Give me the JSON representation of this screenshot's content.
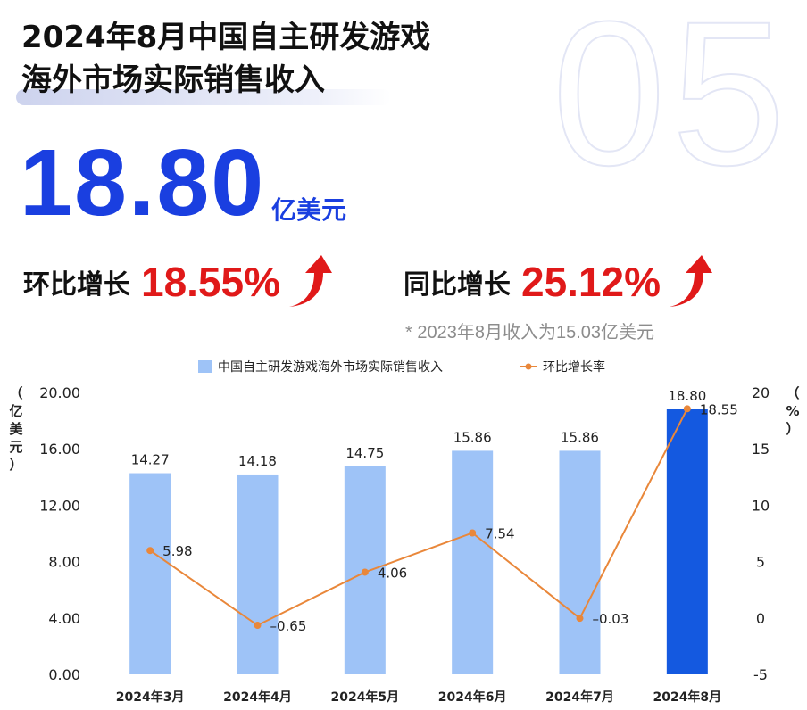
{
  "background_number": "05",
  "title_line1": "2024年8月中国自主研发游戏",
  "title_line2": "海外市场实际销售收入",
  "headline_value": "18.80",
  "headline_unit": "亿美元",
  "mom_label": "环比增长",
  "mom_value": "18.55%",
  "yoy_label": "同比增长",
  "yoy_value": "25.12%",
  "note": "* 2023年8月收入为15.03亿美元",
  "colors": {
    "accent_blue": "#1a3fe0",
    "red": "#e01919",
    "bar_light": "#9ec3f7",
    "bar_highlight": "#1459e0",
    "line_orange": "#e9873a"
  },
  "chart_data": {
    "type": "bar",
    "categories": [
      "2024年3月",
      "2024年4月",
      "2024年5月",
      "2024年6月",
      "2024年7月",
      "2024年8月"
    ],
    "series": [
      {
        "name": "中国自主研发游戏海外市场实际销售收入",
        "type": "bar",
        "axis": "left",
        "values": [
          14.27,
          14.18,
          14.75,
          15.86,
          15.86,
          18.8
        ],
        "labels": [
          "14.27",
          "14.18",
          "14.75",
          "15.86",
          "15.86",
          "18.80"
        ]
      },
      {
        "name": "环比增长率",
        "type": "line",
        "axis": "right",
        "values": [
          5.98,
          -0.65,
          4.06,
          7.54,
          -0.03,
          18.55
        ],
        "labels": [
          "5.98",
          "–0.65",
          "4.06",
          "7.54",
          "–0.03",
          "18.55"
        ]
      }
    ],
    "y_left": {
      "label": "（亿美元）",
      "min": 0,
      "max": 20,
      "ticks": [
        0,
        4,
        8,
        12,
        16,
        20
      ],
      "tick_labels": [
        "0.00",
        "4.00",
        "8.00",
        "12.00",
        "16.00",
        "20.00"
      ]
    },
    "y_right": {
      "label": "（%）",
      "min": -5,
      "max": 20,
      "ticks": [
        -5,
        0,
        5,
        10,
        15,
        20
      ],
      "tick_labels": [
        "-5",
        "0",
        "5",
        "10",
        "15",
        "20"
      ]
    },
    "legend_position": "top",
    "highlight_index": 5
  }
}
